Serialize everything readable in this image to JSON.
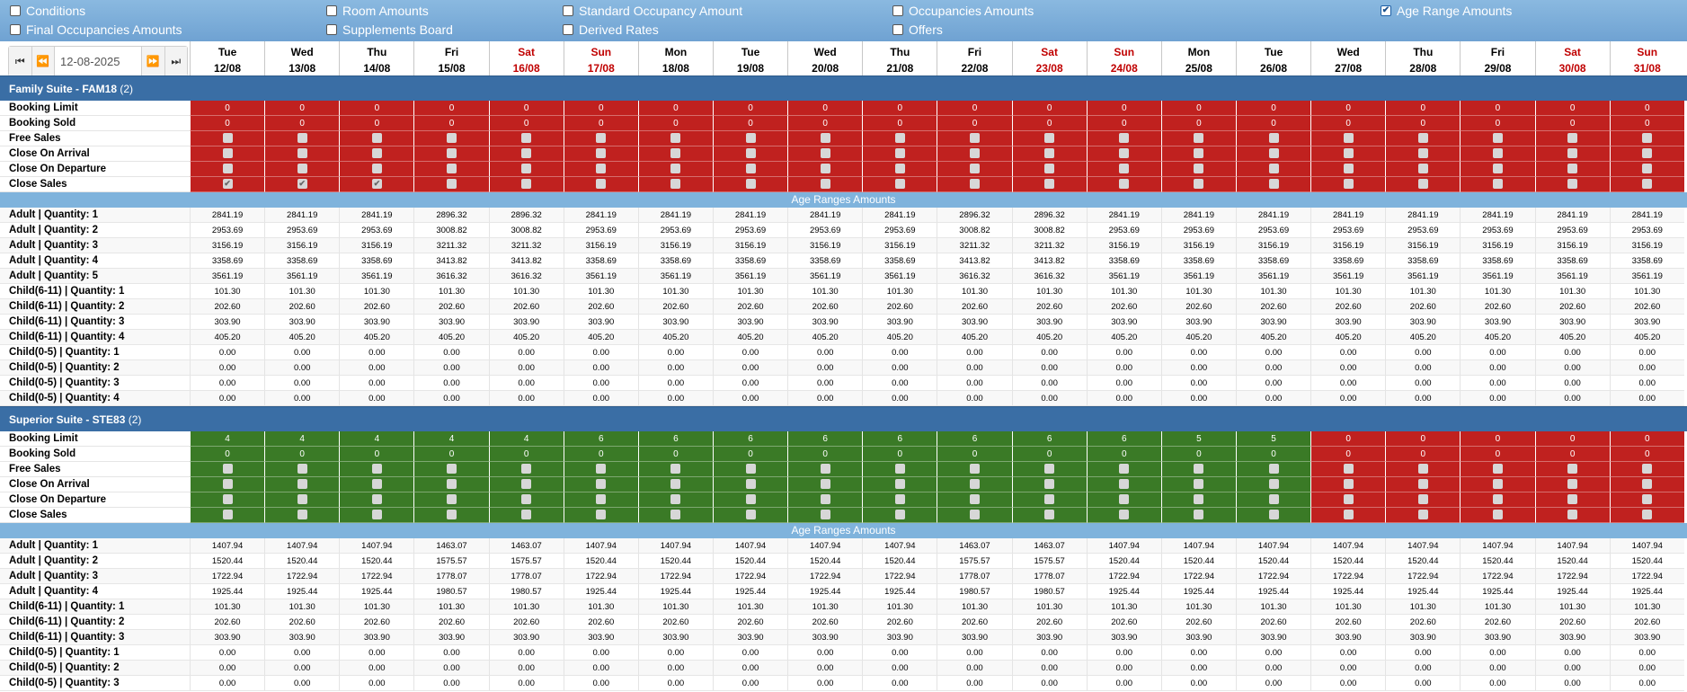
{
  "filters": [
    {
      "label": "Conditions",
      "checked": false
    },
    {
      "label": "Room Amounts",
      "checked": false
    },
    {
      "label": "Standard Occupancy Amount",
      "checked": false
    },
    {
      "label": "Occupancies Amounts",
      "checked": false
    },
    {
      "label": "Age Range Amounts",
      "checked": true
    },
    {
      "label": "Final Occupancies Amounts",
      "checked": false
    },
    {
      "label": "Supplements Board",
      "checked": false
    },
    {
      "label": "Derived Rates",
      "checked": false
    },
    {
      "label": "Offers",
      "checked": false
    }
  ],
  "date_nav": {
    "current_date": "12-08-2025",
    "first_icon": "skip-back-icon",
    "prev_icon": "rewind-icon",
    "next_icon": "fast-forward-icon",
    "last_icon": "skip-forward-icon"
  },
  "days": [
    {
      "name": "Tue",
      "date": "12/08",
      "weekend": false
    },
    {
      "name": "Wed",
      "date": "13/08",
      "weekend": false
    },
    {
      "name": "Thu",
      "date": "14/08",
      "weekend": false
    },
    {
      "name": "Fri",
      "date": "15/08",
      "weekend": false
    },
    {
      "name": "Sat",
      "date": "16/08",
      "weekend": true
    },
    {
      "name": "Sun",
      "date": "17/08",
      "weekend": true
    },
    {
      "name": "Mon",
      "date": "18/08",
      "weekend": false
    },
    {
      "name": "Tue",
      "date": "19/08",
      "weekend": false
    },
    {
      "name": "Wed",
      "date": "20/08",
      "weekend": false
    },
    {
      "name": "Thu",
      "date": "21/08",
      "weekend": false
    },
    {
      "name": "Fri",
      "date": "22/08",
      "weekend": false
    },
    {
      "name": "Sat",
      "date": "23/08",
      "weekend": true
    },
    {
      "name": "Sun",
      "date": "24/08",
      "weekend": true
    },
    {
      "name": "Mon",
      "date": "25/08",
      "weekend": false
    },
    {
      "name": "Tue",
      "date": "26/08",
      "weekend": false
    },
    {
      "name": "Wed",
      "date": "27/08",
      "weekend": false
    },
    {
      "name": "Thu",
      "date": "28/08",
      "weekend": false
    },
    {
      "name": "Fri",
      "date": "29/08",
      "weekend": false
    },
    {
      "name": "Sat",
      "date": "30/08",
      "weekend": true
    },
    {
      "name": "Sun",
      "date": "31/08",
      "weekend": true
    }
  ],
  "colors": {
    "closed": "#c0211f",
    "open": "#3a7a26",
    "section": "#3a6ea5",
    "subsection": "#7fb3dc"
  },
  "rooms": [
    {
      "title": "Family Suite - FAM18",
      "count": "(2)",
      "status": [
        "closed",
        "closed",
        "closed",
        "closed",
        "closed",
        "closed",
        "closed",
        "closed",
        "closed",
        "closed",
        "closed",
        "closed",
        "closed",
        "closed",
        "closed",
        "closed",
        "closed",
        "closed",
        "closed",
        "closed"
      ],
      "booking_limit": [
        "0",
        "0",
        "0",
        "0",
        "0",
        "0",
        "0",
        "0",
        "0",
        "0",
        "0",
        "0",
        "0",
        "0",
        "0",
        "0",
        "0",
        "0",
        "0",
        "0"
      ],
      "booking_sold": [
        "0",
        "0",
        "0",
        "0",
        "0",
        "0",
        "0",
        "0",
        "0",
        "0",
        "0",
        "0",
        "0",
        "0",
        "0",
        "0",
        "0",
        "0",
        "0",
        "0"
      ],
      "close_sales_checked": [
        true,
        true,
        true,
        false,
        false,
        false,
        false,
        false,
        false,
        false,
        false,
        false,
        false,
        false,
        false,
        false,
        false,
        false,
        false,
        false
      ],
      "labels": {
        "booking_limit": "Booking Limit",
        "booking_sold": "Booking Sold",
        "free_sales": "Free Sales",
        "close_on_arrival": "Close On Arrival",
        "close_on_departure": "Close On Departure",
        "close_sales": "Close Sales"
      },
      "amounts_title": "Age Ranges Amounts",
      "amounts": [
        {
          "label": "Adult | Quantity: 1",
          "values": [
            "2841.19",
            "2841.19",
            "2841.19",
            "2896.32",
            "2896.32",
            "2841.19",
            "2841.19",
            "2841.19",
            "2841.19",
            "2841.19",
            "2896.32",
            "2896.32",
            "2841.19",
            "2841.19",
            "2841.19",
            "2841.19",
            "2841.19",
            "2841.19",
            "2841.19",
            "2841.19"
          ]
        },
        {
          "label": "Adult | Quantity: 2",
          "values": [
            "2953.69",
            "2953.69",
            "2953.69",
            "3008.82",
            "3008.82",
            "2953.69",
            "2953.69",
            "2953.69",
            "2953.69",
            "2953.69",
            "3008.82",
            "3008.82",
            "2953.69",
            "2953.69",
            "2953.69",
            "2953.69",
            "2953.69",
            "2953.69",
            "2953.69",
            "2953.69"
          ]
        },
        {
          "label": "Adult | Quantity: 3",
          "values": [
            "3156.19",
            "3156.19",
            "3156.19",
            "3211.32",
            "3211.32",
            "3156.19",
            "3156.19",
            "3156.19",
            "3156.19",
            "3156.19",
            "3211.32",
            "3211.32",
            "3156.19",
            "3156.19",
            "3156.19",
            "3156.19",
            "3156.19",
            "3156.19",
            "3156.19",
            "3156.19"
          ]
        },
        {
          "label": "Adult | Quantity: 4",
          "values": [
            "3358.69",
            "3358.69",
            "3358.69",
            "3413.82",
            "3413.82",
            "3358.69",
            "3358.69",
            "3358.69",
            "3358.69",
            "3358.69",
            "3413.82",
            "3413.82",
            "3358.69",
            "3358.69",
            "3358.69",
            "3358.69",
            "3358.69",
            "3358.69",
            "3358.69",
            "3358.69"
          ]
        },
        {
          "label": "Adult | Quantity: 5",
          "values": [
            "3561.19",
            "3561.19",
            "3561.19",
            "3616.32",
            "3616.32",
            "3561.19",
            "3561.19",
            "3561.19",
            "3561.19",
            "3561.19",
            "3616.32",
            "3616.32",
            "3561.19",
            "3561.19",
            "3561.19",
            "3561.19",
            "3561.19",
            "3561.19",
            "3561.19",
            "3561.19"
          ]
        },
        {
          "label": "Child(6-11) | Quantity: 1",
          "values": [
            "101.30",
            "101.30",
            "101.30",
            "101.30",
            "101.30",
            "101.30",
            "101.30",
            "101.30",
            "101.30",
            "101.30",
            "101.30",
            "101.30",
            "101.30",
            "101.30",
            "101.30",
            "101.30",
            "101.30",
            "101.30",
            "101.30",
            "101.30"
          ]
        },
        {
          "label": "Child(6-11) | Quantity: 2",
          "values": [
            "202.60",
            "202.60",
            "202.60",
            "202.60",
            "202.60",
            "202.60",
            "202.60",
            "202.60",
            "202.60",
            "202.60",
            "202.60",
            "202.60",
            "202.60",
            "202.60",
            "202.60",
            "202.60",
            "202.60",
            "202.60",
            "202.60",
            "202.60"
          ]
        },
        {
          "label": "Child(6-11) | Quantity: 3",
          "values": [
            "303.90",
            "303.90",
            "303.90",
            "303.90",
            "303.90",
            "303.90",
            "303.90",
            "303.90",
            "303.90",
            "303.90",
            "303.90",
            "303.90",
            "303.90",
            "303.90",
            "303.90",
            "303.90",
            "303.90",
            "303.90",
            "303.90",
            "303.90"
          ]
        },
        {
          "label": "Child(6-11) | Quantity: 4",
          "values": [
            "405.20",
            "405.20",
            "405.20",
            "405.20",
            "405.20",
            "405.20",
            "405.20",
            "405.20",
            "405.20",
            "405.20",
            "405.20",
            "405.20",
            "405.20",
            "405.20",
            "405.20",
            "405.20",
            "405.20",
            "405.20",
            "405.20",
            "405.20"
          ]
        },
        {
          "label": "Child(0-5) | Quantity: 1",
          "values": [
            "0.00",
            "0.00",
            "0.00",
            "0.00",
            "0.00",
            "0.00",
            "0.00",
            "0.00",
            "0.00",
            "0.00",
            "0.00",
            "0.00",
            "0.00",
            "0.00",
            "0.00",
            "0.00",
            "0.00",
            "0.00",
            "0.00",
            "0.00"
          ]
        },
        {
          "label": "Child(0-5) | Quantity: 2",
          "values": [
            "0.00",
            "0.00",
            "0.00",
            "0.00",
            "0.00",
            "0.00",
            "0.00",
            "0.00",
            "0.00",
            "0.00",
            "0.00",
            "0.00",
            "0.00",
            "0.00",
            "0.00",
            "0.00",
            "0.00",
            "0.00",
            "0.00",
            "0.00"
          ]
        },
        {
          "label": "Child(0-5) | Quantity: 3",
          "values": [
            "0.00",
            "0.00",
            "0.00",
            "0.00",
            "0.00",
            "0.00",
            "0.00",
            "0.00",
            "0.00",
            "0.00",
            "0.00",
            "0.00",
            "0.00",
            "0.00",
            "0.00",
            "0.00",
            "0.00",
            "0.00",
            "0.00",
            "0.00"
          ]
        },
        {
          "label": "Child(0-5) | Quantity: 4",
          "values": [
            "0.00",
            "0.00",
            "0.00",
            "0.00",
            "0.00",
            "0.00",
            "0.00",
            "0.00",
            "0.00",
            "0.00",
            "0.00",
            "0.00",
            "0.00",
            "0.00",
            "0.00",
            "0.00",
            "0.00",
            "0.00",
            "0.00",
            "0.00"
          ]
        }
      ]
    },
    {
      "title": "Superior Suite - STE83",
      "count": "(2)",
      "status": [
        "open",
        "open",
        "open",
        "open",
        "open",
        "open",
        "open",
        "open",
        "open",
        "open",
        "open",
        "open",
        "open",
        "open",
        "open",
        "closed",
        "closed",
        "closed",
        "closed",
        "closed"
      ],
      "booking_limit": [
        "4",
        "4",
        "4",
        "4",
        "4",
        "6",
        "6",
        "6",
        "6",
        "6",
        "6",
        "6",
        "6",
        "5",
        "5",
        "0",
        "0",
        "0",
        "0",
        "0"
      ],
      "booking_sold": [
        "0",
        "0",
        "0",
        "0",
        "0",
        "0",
        "0",
        "0",
        "0",
        "0",
        "0",
        "0",
        "0",
        "0",
        "0",
        "0",
        "0",
        "0",
        "0",
        "0"
      ],
      "close_sales_checked": [
        false,
        false,
        false,
        false,
        false,
        false,
        false,
        false,
        false,
        false,
        false,
        false,
        false,
        false,
        false,
        false,
        false,
        false,
        false,
        false
      ],
      "labels": {
        "booking_limit": "Booking Limit",
        "booking_sold": "Booking Sold",
        "free_sales": "Free Sales",
        "close_on_arrival": "Close On Arrival",
        "close_on_departure": "Close On Departure",
        "close_sales": "Close Sales"
      },
      "amounts_title": "Age Ranges Amounts",
      "amounts": [
        {
          "label": "Adult | Quantity: 1",
          "values": [
            "1407.94",
            "1407.94",
            "1407.94",
            "1463.07",
            "1463.07",
            "1407.94",
            "1407.94",
            "1407.94",
            "1407.94",
            "1407.94",
            "1463.07",
            "1463.07",
            "1407.94",
            "1407.94",
            "1407.94",
            "1407.94",
            "1407.94",
            "1407.94",
            "1407.94",
            "1407.94"
          ]
        },
        {
          "label": "Adult | Quantity: 2",
          "values": [
            "1520.44",
            "1520.44",
            "1520.44",
            "1575.57",
            "1575.57",
            "1520.44",
            "1520.44",
            "1520.44",
            "1520.44",
            "1520.44",
            "1575.57",
            "1575.57",
            "1520.44",
            "1520.44",
            "1520.44",
            "1520.44",
            "1520.44",
            "1520.44",
            "1520.44",
            "1520.44"
          ]
        },
        {
          "label": "Adult | Quantity: 3",
          "values": [
            "1722.94",
            "1722.94",
            "1722.94",
            "1778.07",
            "1778.07",
            "1722.94",
            "1722.94",
            "1722.94",
            "1722.94",
            "1722.94",
            "1778.07",
            "1778.07",
            "1722.94",
            "1722.94",
            "1722.94",
            "1722.94",
            "1722.94",
            "1722.94",
            "1722.94",
            "1722.94"
          ]
        },
        {
          "label": "Adult | Quantity: 4",
          "values": [
            "1925.44",
            "1925.44",
            "1925.44",
            "1980.57",
            "1980.57",
            "1925.44",
            "1925.44",
            "1925.44",
            "1925.44",
            "1925.44",
            "1980.57",
            "1980.57",
            "1925.44",
            "1925.44",
            "1925.44",
            "1925.44",
            "1925.44",
            "1925.44",
            "1925.44",
            "1925.44"
          ]
        },
        {
          "label": "Child(6-11) | Quantity: 1",
          "values": [
            "101.30",
            "101.30",
            "101.30",
            "101.30",
            "101.30",
            "101.30",
            "101.30",
            "101.30",
            "101.30",
            "101.30",
            "101.30",
            "101.30",
            "101.30",
            "101.30",
            "101.30",
            "101.30",
            "101.30",
            "101.30",
            "101.30",
            "101.30"
          ]
        },
        {
          "label": "Child(6-11) | Quantity: 2",
          "values": [
            "202.60",
            "202.60",
            "202.60",
            "202.60",
            "202.60",
            "202.60",
            "202.60",
            "202.60",
            "202.60",
            "202.60",
            "202.60",
            "202.60",
            "202.60",
            "202.60",
            "202.60",
            "202.60",
            "202.60",
            "202.60",
            "202.60",
            "202.60"
          ]
        },
        {
          "label": "Child(6-11) | Quantity: 3",
          "values": [
            "303.90",
            "303.90",
            "303.90",
            "303.90",
            "303.90",
            "303.90",
            "303.90",
            "303.90",
            "303.90",
            "303.90",
            "303.90",
            "303.90",
            "303.90",
            "303.90",
            "303.90",
            "303.90",
            "303.90",
            "303.90",
            "303.90",
            "303.90"
          ]
        },
        {
          "label": "Child(0-5) | Quantity: 1",
          "values": [
            "0.00",
            "0.00",
            "0.00",
            "0.00",
            "0.00",
            "0.00",
            "0.00",
            "0.00",
            "0.00",
            "0.00",
            "0.00",
            "0.00",
            "0.00",
            "0.00",
            "0.00",
            "0.00",
            "0.00",
            "0.00",
            "0.00",
            "0.00"
          ]
        },
        {
          "label": "Child(0-5) | Quantity: 2",
          "values": [
            "0.00",
            "0.00",
            "0.00",
            "0.00",
            "0.00",
            "0.00",
            "0.00",
            "0.00",
            "0.00",
            "0.00",
            "0.00",
            "0.00",
            "0.00",
            "0.00",
            "0.00",
            "0.00",
            "0.00",
            "0.00",
            "0.00",
            "0.00"
          ]
        },
        {
          "label": "Child(0-5) | Quantity: 3",
          "values": [
            "0.00",
            "0.00",
            "0.00",
            "0.00",
            "0.00",
            "0.00",
            "0.00",
            "0.00",
            "0.00",
            "0.00",
            "0.00",
            "0.00",
            "0.00",
            "0.00",
            "0.00",
            "0.00",
            "0.00",
            "0.00",
            "0.00",
            "0.00"
          ]
        }
      ]
    }
  ]
}
